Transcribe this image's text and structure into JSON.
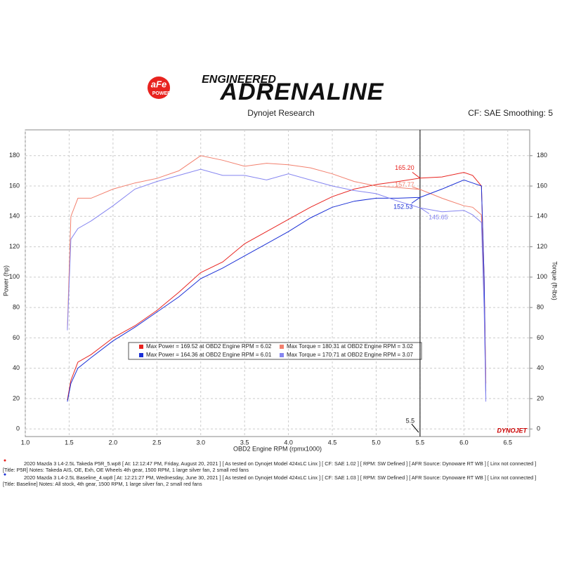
{
  "header": {
    "brand": "aFe",
    "brand_sub": "POWER",
    "tagline_top": "ENGINEERED",
    "tagline": "ADRENALINE",
    "source": "Dynojet Research",
    "settings": "CF: SAE Smoothing: 5"
  },
  "chart_data": {
    "type": "line",
    "x_label": "OBD2 Engine RPM (rpmx1000)",
    "y_label": "Power (hp)",
    "y2_label": "Torque (ft-lbs)",
    "watermark": "DYNOJET",
    "xlim": [
      1.0,
      6.75
    ],
    "ylim": [
      -5,
      197
    ],
    "y2lim": [
      -5,
      197
    ],
    "xticks": [
      {
        "value": 1,
        "label": "1.0"
      },
      1.5,
      {
        "value": 2,
        "label": "2.0"
      },
      2.5,
      {
        "value": 3,
        "label": "3.0"
      },
      3.5,
      {
        "value": 4,
        "label": "4.0"
      },
      4.5,
      {
        "value": 5,
        "label": "5.0"
      },
      5.5,
      {
        "value": 6,
        "label": "6.0"
      },
      6.5
    ],
    "yticks": [
      0,
      20,
      40,
      60,
      80,
      100,
      120,
      140,
      160,
      180
    ],
    "y2ticks": [
      0,
      20,
      40,
      60,
      80,
      100,
      120,
      140,
      160,
      180
    ],
    "cursor_x": 5.5,
    "x": [
      1.48,
      1.52,
      1.6,
      1.75,
      2.0,
      2.25,
      2.5,
      2.75,
      3.0,
      3.25,
      3.5,
      3.75,
      4.0,
      4.25,
      4.5,
      4.75,
      5.0,
      5.25,
      5.5,
      5.75,
      6.0,
      6.1,
      6.2,
      6.23,
      6.25
    ],
    "series": [
      {
        "name": "Max Power = 169.52 at OBD2 Engine RPM = 6.02",
        "color": "#e8231f",
        "cursor_label": "165.20",
        "values": [
          19,
          32,
          44,
          49,
          60,
          68,
          78,
          90,
          103,
          110,
          122,
          130,
          138,
          146,
          153,
          158,
          161,
          163,
          165.2,
          166,
          169,
          167,
          160,
          100,
          30
        ]
      },
      {
        "name": "Max Torque = 180.31 at OBD2 Engine RPM = 3.02",
        "color": "#f2806e",
        "axis": "y2",
        "cursor_label": "157.77",
        "values": [
          66,
          140,
          152,
          152,
          158,
          162,
          165,
          170,
          180,
          177,
          173,
          175,
          174,
          172,
          168,
          163,
          160,
          159,
          157.77,
          152,
          147,
          146,
          141,
          90,
          25
        ]
      },
      {
        "name": "Max Power = 164.36 at OBD2 Engine RPM = 6.01",
        "color": "#1a2fd6",
        "cursor_label": "152.53",
        "values": [
          18,
          30,
          40,
          47,
          58,
          67,
          77,
          87,
          99,
          106,
          114,
          122,
          130,
          139,
          146,
          150,
          152,
          152,
          152.53,
          158,
          164,
          162,
          160,
          100,
          20
        ]
      },
      {
        "name": "Max Torque = 170.71 at OBD2 Engine RPM = 3.07",
        "color": "#8585f0",
        "axis": "y2",
        "cursor_label": "145.65",
        "values": [
          65,
          125,
          132,
          137,
          147,
          158,
          163,
          167,
          171,
          167,
          167,
          164,
          168,
          164,
          160,
          157,
          155,
          150,
          145.65,
          143,
          144,
          141,
          136,
          80,
          18
        ]
      }
    ]
  },
  "footer": [
    {
      "color": "#e8231f",
      "line1": "2020 Mazda 3 L4-2.5L Takeda P5R_5.wp8 [ At: 12:12:47 PM, Friday, August 20, 2021 ] [ As tested on Dynojet Model 424xLC Linx ] [ CF: SAE 1.02 ] [ RPM: SW Defined ] [ AFR Source: Dynoware RT WB ] [ Linx not connected ]",
      "line2": "[Title: P5R]  Notes: Takeda AIS, OE, Exh, OE Wheels 4th gear, 1500 RPM, 1 large silver fan, 2 small red fans"
    },
    {
      "color": "#1a2fd6",
      "line1": "2020 Mazda 3 L4-2.5L Baseline_4.wp8 [ At: 12:21:27 PM, Wednesday, June 30, 2021 ] [ As tested on Dynojet Model 424xLC Linx ] [ CF: SAE 1.03 ] [ RPM: SW Defined ] [ AFR Source: Dynoware RT WB ] [ Linx not connected ]",
      "line2": "[Title: Baseline]  Notes: All stock, 4th gear, 1500 RPM, 1 large silver fan, 2 small red fans"
    }
  ]
}
